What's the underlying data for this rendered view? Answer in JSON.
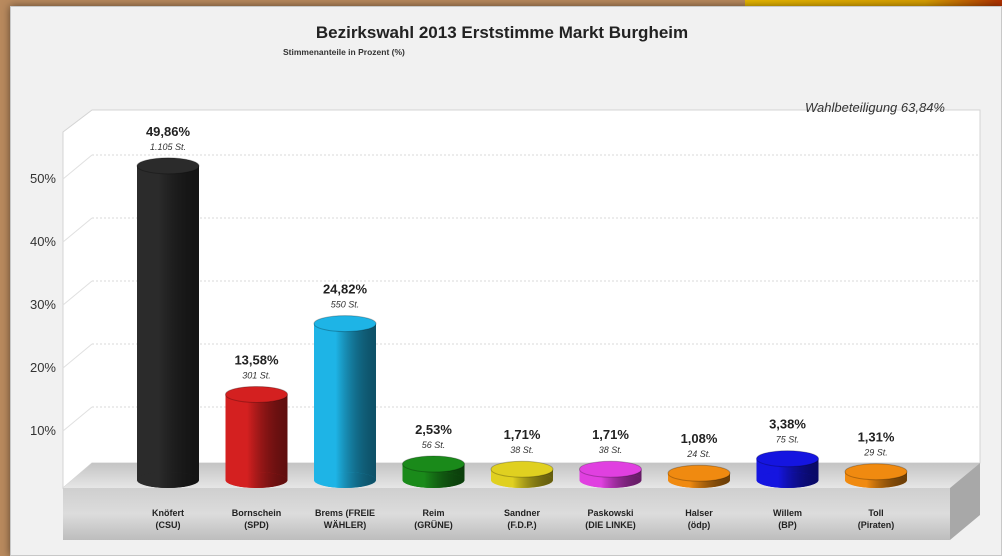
{
  "chart_data": {
    "type": "bar",
    "title": "Bezirkswahl 2013 Erststimme Markt Burgheim",
    "subtitle": "Stimmenanteile in Prozent (%)",
    "annotation": "Wahlbeteiligung 63,84%",
    "ylim": [
      0,
      55
    ],
    "yticks": [
      "10%",
      "20%",
      "30%",
      "40%",
      "50%"
    ],
    "ytick_values": [
      10,
      20,
      30,
      40,
      50
    ],
    "grid": true,
    "categories": [
      [
        "Knöfert",
        "(CSU)"
      ],
      [
        "Bornschein",
        "(SPD)"
      ],
      [
        "Brems (FREIE",
        "WÄHLER)"
      ],
      [
        "Reim",
        "(GRÜNE)"
      ],
      [
        "Sandner",
        "(F.D.P.)"
      ],
      [
        "Paskowski",
        "(DIE LINKE)"
      ],
      [
        "Halser",
        "(ödp)"
      ],
      [
        "Willem",
        "(BP)"
      ],
      [
        "Toll",
        "(Piraten)"
      ]
    ],
    "values": [
      49.86,
      13.58,
      24.82,
      2.53,
      1.71,
      1.71,
      1.08,
      3.38,
      1.31
    ],
    "value_labels": [
      "49,86%",
      "13,58%",
      "24,82%",
      "2,53%",
      "1,71%",
      "1,71%",
      "1,08%",
      "3,38%",
      "1,31%"
    ],
    "vote_labels": [
      "1.105 St.",
      "301 St.",
      "550 St.",
      "56 St.",
      "38 St.",
      "38 St.",
      "24 St.",
      "75 St.",
      "29 St."
    ],
    "colors": [
      "#2b2b2b",
      "#d42020",
      "#1eb4e6",
      "#1a8a1a",
      "#e0d020",
      "#e040e0",
      "#f08a10",
      "#1515e0",
      "#f08a10"
    ]
  }
}
